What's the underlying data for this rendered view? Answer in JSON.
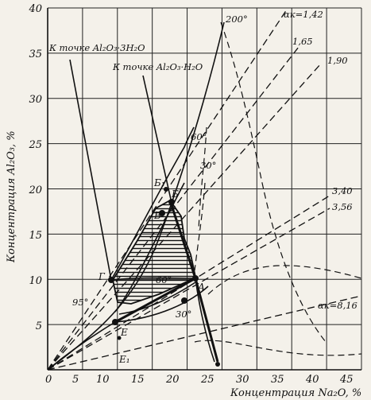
{
  "chart_data": {
    "type": "phase-diagram",
    "xlabel": "Концентрация Na₂O, %",
    "ylabel": "Концентрация Al₂O₃, %",
    "xlim": [
      0,
      45
    ],
    "ylim": [
      0,
      40
    ],
    "x_ticks": [
      "0",
      "5",
      "10",
      "15",
      "20",
      "25",
      "30",
      "35",
      "40",
      "45"
    ],
    "y_ticks": [
      "5",
      "10",
      "15",
      "20",
      "25",
      "30",
      "35",
      "40"
    ],
    "temperature_labels": [
      "200°",
      "60°",
      "30°",
      "60°",
      "30°",
      "95°"
    ],
    "ratio_labels": [
      "αк=1,42",
      "1,65",
      "1,90",
      "3,40",
      "3,56",
      "αк=8,16"
    ],
    "point_labels": [
      "Б₁",
      "Б",
      "В",
      "Г",
      "А",
      "Е",
      "Е₁"
    ],
    "annotations": [
      "К точке Al₂O₃·3H₂O",
      "К точке Al₂O₃·H₂O"
    ]
  },
  "icons": [
    "hatched-region"
  ]
}
